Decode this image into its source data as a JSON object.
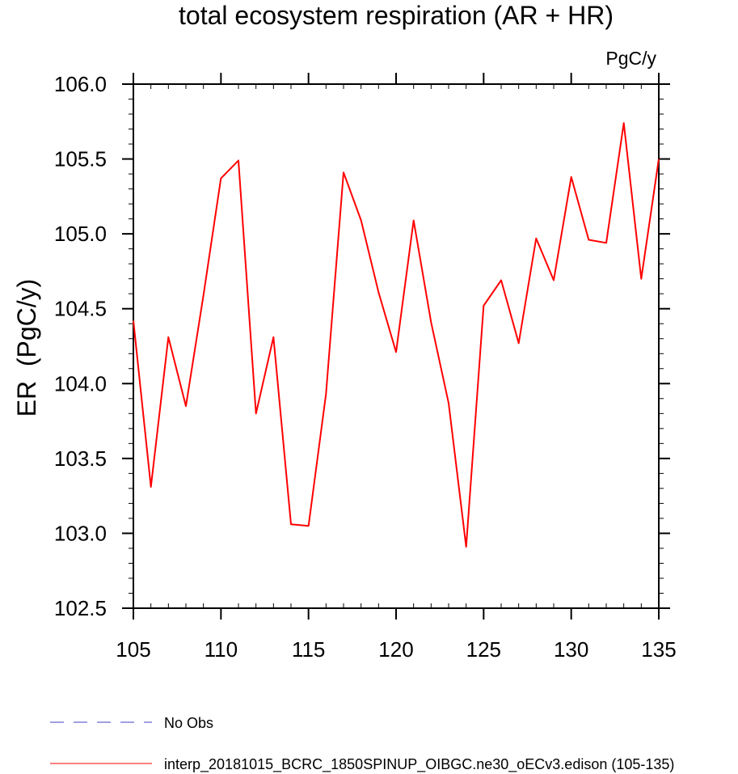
{
  "chart_data": {
    "type": "line",
    "title": "total ecosystem respiration (AR + HR)",
    "units": "PgC/y",
    "ylabel": "ER  (PgC/y)",
    "xlabel": "",
    "xlim": [
      105,
      135
    ],
    "ylim": [
      102.5,
      106.0
    ],
    "xticks": [
      105,
      110,
      115,
      120,
      125,
      130,
      135
    ],
    "yticks": [
      "102.5",
      "103.0",
      "103.5",
      "104.0",
      "104.5",
      "105.0",
      "105.5",
      "106.0"
    ],
    "grid": false,
    "legend": {
      "placement": "bottom",
      "entries": [
        {
          "label": "No Obs",
          "color": "#4040c8",
          "style": "dashed"
        },
        {
          "label": "interp_20181015_BCRC_1850SPINUP_OIBGC.ne30_oECv3.edison (105-135)",
          "color": "#ff0000",
          "style": "solid"
        }
      ]
    },
    "series": [
      {
        "color": "#ff0000",
        "x": [
          105,
          106,
          107,
          108,
          109,
          110,
          111,
          112,
          113,
          114,
          115,
          116,
          117,
          118,
          119,
          120,
          121,
          122,
          123,
          124,
          125,
          126,
          127,
          128,
          129,
          130,
          131,
          132,
          133,
          134,
          135
        ],
        "values": [
          104.42,
          103.31,
          104.31,
          103.85,
          104.59,
          105.37,
          105.49,
          103.8,
          104.31,
          103.06,
          103.05,
          103.93,
          105.41,
          105.09,
          104.61,
          104.21,
          105.09,
          104.41,
          103.87,
          102.91,
          104.52,
          104.69,
          104.27,
          104.97,
          104.69,
          105.38,
          104.96,
          104.94,
          105.74,
          104.7,
          105.5
        ]
      }
    ]
  }
}
